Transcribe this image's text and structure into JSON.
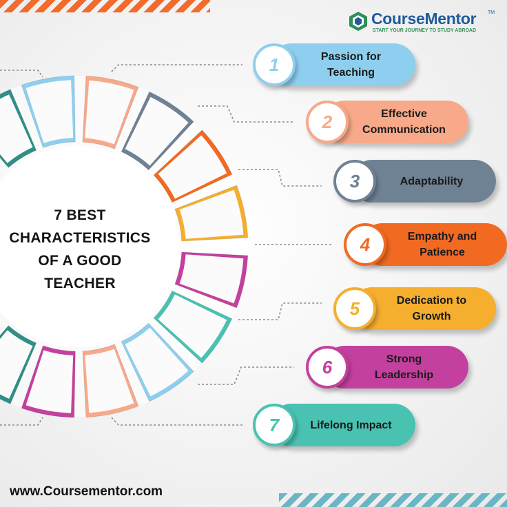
{
  "brand": {
    "name": "CourseMentor",
    "trademark": "TM",
    "tagline": "START YOUR JOURNEY TO STUDY ABROAD"
  },
  "title_lines": [
    "7 BEST",
    "CHARACTERISTICS",
    "OF A GOOD",
    "TEACHER"
  ],
  "items": [
    {
      "number": "1",
      "label_lines": [
        "Passion for",
        "Teaching"
      ],
      "color": "#8ecfef"
    },
    {
      "number": "2",
      "label_lines": [
        "Effective",
        "Communication"
      ],
      "color": "#f7a98a"
    },
    {
      "number": "3",
      "label_lines": [
        "Adaptability"
      ],
      "color": "#6f8294"
    },
    {
      "number": "4",
      "label_lines": [
        "Empathy and",
        "Patience"
      ],
      "color": "#f26a22"
    },
    {
      "number": "5",
      "label_lines": [
        "Dedication to",
        "Growth"
      ],
      "color": "#f5ae2e"
    },
    {
      "number": "6",
      "label_lines": [
        "Strong",
        "Leadership"
      ],
      "color": "#c4409e"
    },
    {
      "number": "7",
      "label_lines": [
        "Lifelong Impact"
      ],
      "color": "#49c2b2"
    }
  ],
  "wheel_colors": [
    "#8ecfef",
    "#f7a98a",
    "#6f8294",
    "#f26a22",
    "#f5ae2e",
    "#c4409e",
    "#49c2b2",
    "#2f8f86",
    "#c4409e"
  ],
  "footer": {
    "website": "www.Coursementor.com"
  }
}
